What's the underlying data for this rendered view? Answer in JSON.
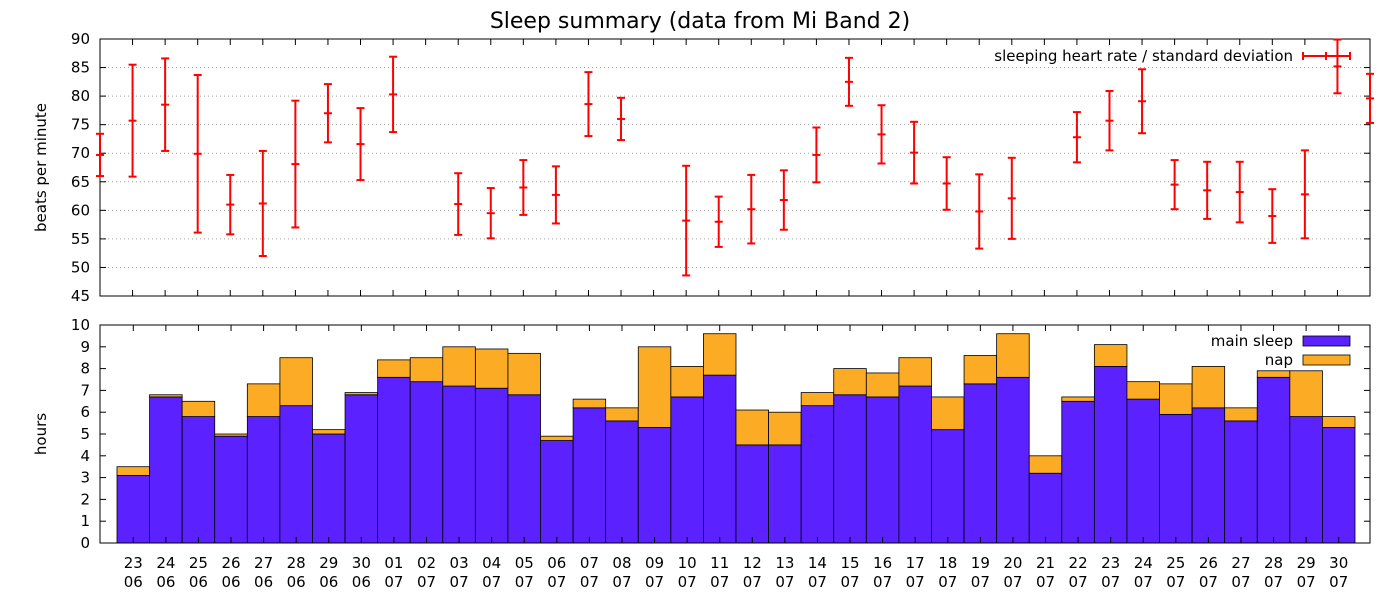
{
  "title": "Sleep summary (data from Mi Band 2)",
  "colors": {
    "heart_rate": "#ff0000",
    "main_sleep": "#5b22ff",
    "nap": "#fbab24",
    "grid": "#a0a0a0",
    "axis": "#000000"
  },
  "chart_data": [
    {
      "type": "scatter",
      "panel": "heart_rate",
      "title": "",
      "xlabel": "",
      "ylabel": "beats per minute",
      "ylim": [
        45,
        90
      ],
      "yticks": [
        45,
        50,
        55,
        60,
        65,
        70,
        75,
        80,
        85,
        90
      ],
      "grid": true,
      "legend_position": "top-right",
      "series": [
        {
          "name": "sleeping heart rate / standard deviation",
          "x": [
            "22.06",
            "23.06",
            "24.06",
            "25.06",
            "26.06",
            "27.06",
            "28.06",
            "29.06",
            "30.06",
            "01.07",
            "02.07",
            "03.07",
            "04.07",
            "05.07",
            "06.07",
            "07.07",
            "08.07",
            "09.07",
            "10.07",
            "11.07",
            "12.07",
            "13.07",
            "14.07",
            "15.07",
            "16.07",
            "17.07",
            "18.07",
            "19.07",
            "20.07",
            "21.07",
            "22.07",
            "23.07",
            "24.07",
            "25.07",
            "26.07",
            "27.07",
            "28.07",
            "29.07",
            "30.07",
            "31.07"
          ],
          "values": [
            69.7,
            75.7,
            78.5,
            69.9,
            61.0,
            61.2,
            68.1,
            77.0,
            71.6,
            80.3,
            null,
            61.1,
            59.5,
            64.0,
            62.7,
            78.6,
            76.0,
            null,
            58.2,
            58.0,
            60.2,
            61.8,
            69.7,
            82.5,
            73.3,
            70.1,
            64.7,
            59.8,
            62.1,
            null,
            72.8,
            75.7,
            79.1,
            64.5,
            63.5,
            63.2,
            59.0,
            62.8,
            85.2,
            79.6
          ],
          "std_dev": [
            3.7,
            9.8,
            8.1,
            13.8,
            5.2,
            9.2,
            11.1,
            5.1,
            6.3,
            6.6,
            null,
            5.4,
            4.4,
            4.8,
            5.0,
            5.6,
            3.7,
            null,
            9.6,
            4.4,
            6.0,
            5.2,
            4.8,
            4.2,
            5.1,
            5.4,
            4.6,
            6.5,
            7.1,
            null,
            4.4,
            5.2,
            5.6,
            4.3,
            5.0,
            5.3,
            4.7,
            7.7,
            4.7,
            4.3
          ]
        }
      ]
    },
    {
      "type": "bar",
      "panel": "sleep_hours",
      "stacked": true,
      "title": "",
      "xlabel": "",
      "ylabel": "hours",
      "ylim": [
        0,
        10
      ],
      "yticks": [
        0,
        1,
        2,
        3,
        4,
        5,
        6,
        7,
        8,
        9,
        10
      ],
      "grid": false,
      "legend_position": "top-right",
      "categories": [
        "23 06",
        "24 06",
        "25 06",
        "26 06",
        "27 06",
        "28 06",
        "29 06",
        "30 06",
        "01 07",
        "02 07",
        "03 07",
        "04 07",
        "05 07",
        "06 07",
        "07 07",
        "08 07",
        "09 07",
        "10 07",
        "11 07",
        "12 07",
        "13 07",
        "14 07",
        "15 07",
        "16 07",
        "17 07",
        "18 07",
        "19 07",
        "20 07",
        "21 07",
        "22 07",
        "23 07",
        "24 07",
        "25 07",
        "26 07",
        "27 07",
        "28 07",
        "29 07",
        "30 07"
      ],
      "tick_labels": [
        {
          "day": "23",
          "month": "06"
        },
        {
          "day": "24",
          "month": "06"
        },
        {
          "day": "25",
          "month": "06"
        },
        {
          "day": "26",
          "month": "06"
        },
        {
          "day": "27",
          "month": "06"
        },
        {
          "day": "28",
          "month": "06"
        },
        {
          "day": "29",
          "month": "06"
        },
        {
          "day": "30",
          "month": "06"
        },
        {
          "day": "01",
          "month": "07"
        },
        {
          "day": "02",
          "month": "07"
        },
        {
          "day": "03",
          "month": "07"
        },
        {
          "day": "04",
          "month": "07"
        },
        {
          "day": "05",
          "month": "07"
        },
        {
          "day": "06",
          "month": "07"
        },
        {
          "day": "07",
          "month": "07"
        },
        {
          "day": "08",
          "month": "07"
        },
        {
          "day": "09",
          "month": "07"
        },
        {
          "day": "10",
          "month": "07"
        },
        {
          "day": "11",
          "month": "07"
        },
        {
          "day": "12",
          "month": "07"
        },
        {
          "day": "13",
          "month": "07"
        },
        {
          "day": "14",
          "month": "07"
        },
        {
          "day": "15",
          "month": "07"
        },
        {
          "day": "16",
          "month": "07"
        },
        {
          "day": "17",
          "month": "07"
        },
        {
          "day": "18",
          "month": "07"
        },
        {
          "day": "19",
          "month": "07"
        },
        {
          "day": "20",
          "month": "07"
        },
        {
          "day": "21",
          "month": "07"
        },
        {
          "day": "22",
          "month": "07"
        },
        {
          "day": "23",
          "month": "07"
        },
        {
          "day": "24",
          "month": "07"
        },
        {
          "day": "25",
          "month": "07"
        },
        {
          "day": "26",
          "month": "07"
        },
        {
          "day": "27",
          "month": "07"
        },
        {
          "day": "28",
          "month": "07"
        },
        {
          "day": "29",
          "month": "07"
        },
        {
          "day": "30",
          "month": "07"
        }
      ],
      "series": [
        {
          "name": "main sleep",
          "values": [
            3.1,
            6.7,
            5.8,
            4.9,
            5.8,
            6.3,
            5.0,
            6.8,
            7.6,
            7.4,
            7.2,
            7.1,
            6.8,
            4.7,
            6.2,
            5.6,
            5.3,
            6.7,
            7.7,
            4.5,
            4.5,
            6.3,
            6.8,
            6.7,
            7.2,
            5.2,
            7.3,
            7.6,
            3.2,
            6.5,
            8.1,
            6.6,
            5.9,
            6.2,
            5.6,
            7.6,
            5.8,
            5.3
          ]
        },
        {
          "name": "nap",
          "values": [
            0.4,
            0.1,
            0.7,
            0.1,
            1.5,
            2.2,
            0.2,
            0.1,
            0.8,
            1.1,
            1.8,
            1.8,
            1.9,
            0.2,
            0.4,
            0.6,
            3.7,
            1.4,
            1.9,
            1.6,
            1.5,
            0.6,
            1.2,
            1.1,
            1.3,
            1.5,
            1.3,
            2.0,
            0.8,
            0.2,
            1.0,
            0.8,
            1.4,
            1.9,
            0.6,
            0.3,
            2.1,
            0.5
          ]
        }
      ]
    }
  ]
}
